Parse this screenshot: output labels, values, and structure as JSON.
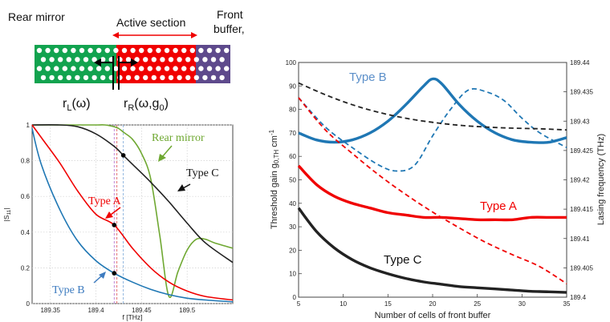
{
  "colors": {
    "green": "#12a34f",
    "red": "#f00000",
    "purple": "#5e4a8c",
    "blue": "#1f77b4",
    "black": "#222222",
    "olive": "#6fa832",
    "darkblue": "#1a5e9c",
    "lightblue": "#5b8fc9"
  },
  "schematic": {
    "rear_mirror_label": "Rear mirror",
    "active_section_label": "Active section",
    "front_buffer_line1": "Front",
    "front_buffer_line2": "buffer,",
    "rl_label": "r",
    "rl_sub": "L",
    "rl_arg": "(ω)",
    "rr_label": "r",
    "rr_sub": "R",
    "rr_arg": "(ω,g",
    "rr_sub2": "0",
    "rr_end": ")"
  },
  "chart_data": [
    {
      "type": "line",
      "xlabel": "f [THz]",
      "ylabel": "|S11|",
      "ylabel_main": "|S",
      "ylabel_sub": "11",
      "ylabel_end": "|",
      "xlim": [
        189.33,
        189.55
      ],
      "ylim": [
        0,
        1
      ],
      "xticks": [
        "189.35",
        "189.4",
        "189.45",
        "189.5"
      ],
      "yticks": [
        "0",
        "0.2",
        "0.4",
        "0.6",
        "0.8",
        "1"
      ],
      "grid": true,
      "annotations": [
        "Rear mirror",
        "Type A",
        "Type C",
        "Type B"
      ],
      "vertical_markers": [
        189.42,
        189.423,
        189.43
      ],
      "series": [
        {
          "name": "Rear mirror",
          "x": [
            189.33,
            189.38,
            189.4,
            189.41,
            189.42,
            189.425,
            189.43,
            189.44,
            189.45,
            189.46,
            189.47,
            189.48,
            189.49,
            189.5,
            189.51,
            189.52,
            189.53,
            189.55
          ],
          "y": [
            1.0,
            1.0,
            1.0,
            1.0,
            0.99,
            0.98,
            0.96,
            0.92,
            0.84,
            0.7,
            0.38,
            0.04,
            0.18,
            0.3,
            0.36,
            0.36,
            0.34,
            0.31
          ]
        },
        {
          "name": "Type C",
          "x": [
            189.33,
            189.36,
            189.38,
            189.4,
            189.42,
            189.43,
            189.44,
            189.46,
            189.48,
            189.5,
            189.52,
            189.55
          ],
          "y": [
            1.0,
            1.0,
            0.99,
            0.95,
            0.88,
            0.83,
            0.78,
            0.68,
            0.57,
            0.45,
            0.34,
            0.23
          ]
        },
        {
          "name": "Type A",
          "x": [
            189.33,
            189.34,
            189.36,
            189.38,
            189.4,
            189.42,
            189.44,
            189.46,
            189.48,
            189.5,
            189.52,
            189.55
          ],
          "y": [
            1.0,
            0.93,
            0.79,
            0.63,
            0.5,
            0.44,
            0.31,
            0.2,
            0.12,
            0.07,
            0.04,
            0.02
          ]
        },
        {
          "name": "Type B",
          "x": [
            189.33,
            189.34,
            189.36,
            189.38,
            189.4,
            189.42,
            189.44,
            189.46,
            189.48,
            189.5,
            189.52,
            189.55
          ],
          "y": [
            0.98,
            0.78,
            0.53,
            0.35,
            0.24,
            0.17,
            0.12,
            0.08,
            0.05,
            0.03,
            0.02,
            0.01
          ]
        }
      ],
      "points": [
        {
          "series": "Type C",
          "x": 189.43,
          "y": 0.83
        },
        {
          "series": "Type A",
          "x": 189.42,
          "y": 0.44
        },
        {
          "series": "Type B",
          "x": 189.42,
          "y": 0.17
        }
      ]
    },
    {
      "type": "line",
      "xlabel": "Number of cells of front buffer",
      "ylabel_left": "Threshold gain g",
      "ylabel_left_sub": "0,TH",
      "ylabel_left_unit": " cm",
      "ylabel_left_sup": "-1",
      "ylabel_right": "Lasing frequency  (THz)",
      "xlim": [
        5,
        35
      ],
      "ylim_left": [
        0,
        100
      ],
      "ylim_right": [
        189.4,
        189.44
      ],
      "xticks": [
        "5",
        "10",
        "15",
        "20",
        "25",
        "30",
        "35"
      ],
      "yticks_left": [
        "0",
        "10",
        "20",
        "30",
        "40",
        "50",
        "60",
        "70",
        "80",
        "90",
        "100"
      ],
      "yticks_right": [
        "189.4",
        "189.405",
        "189.41",
        "189.415",
        "189.42",
        "189.425",
        "189.43",
        "189.435",
        "189.44"
      ],
      "annotations": [
        "Type B",
        "Type A",
        "Type C"
      ],
      "series": [
        {
          "name": "Type B",
          "axis": "left",
          "style": "solid",
          "x": [
            5,
            7,
            9,
            11,
            13,
            15,
            17,
            19,
            20,
            21,
            23,
            25,
            27,
            29,
            31,
            33,
            35
          ],
          "y": [
            70,
            67,
            66,
            67,
            70,
            75,
            82,
            90,
            93,
            91,
            82,
            75,
            70,
            67,
            66,
            66,
            68
          ]
        },
        {
          "name": "Type A",
          "axis": "left",
          "style": "solid",
          "x": [
            5,
            7,
            9,
            11,
            13,
            15,
            17,
            19,
            21,
            23,
            25,
            27,
            29,
            31,
            33,
            35
          ],
          "y": [
            56,
            48,
            43,
            40,
            38,
            36,
            35,
            34,
            34,
            33.5,
            33,
            33,
            33,
            34,
            34,
            34
          ]
        },
        {
          "name": "Type C",
          "axis": "left",
          "style": "solid",
          "x": [
            5,
            7,
            9,
            11,
            13,
            15,
            17,
            19,
            21,
            23,
            25,
            27,
            29,
            31,
            33,
            35
          ],
          "y": [
            38,
            28,
            21,
            16,
            12.5,
            10,
            8,
            6.5,
            5.5,
            4.5,
            4,
            3.5,
            3,
            2.5,
            2.3,
            2
          ]
        },
        {
          "name": "Type B",
          "axis": "right",
          "style": "dashed",
          "x": [
            5,
            8,
            11,
            14,
            16,
            18,
            20,
            22,
            24,
            26,
            28,
            30,
            32,
            35
          ],
          "y": [
            189.434,
            189.429,
            189.4255,
            189.4225,
            189.4215,
            189.4225,
            189.4275,
            189.432,
            189.4353,
            189.435,
            189.4335,
            189.4305,
            189.428,
            189.4255
          ]
        },
        {
          "name": "Type A",
          "axis": "right",
          "style": "dashed",
          "x": [
            5,
            8,
            11,
            14,
            17,
            20,
            23,
            26,
            29,
            32,
            35
          ],
          "y": [
            189.434,
            189.4285,
            189.4245,
            189.4208,
            189.4175,
            189.4145,
            189.4118,
            189.4093,
            189.4072,
            189.4052,
            189.4023
          ]
        },
        {
          "name": "Type C",
          "axis": "right",
          "style": "dashed",
          "x": [
            5,
            8,
            11,
            14,
            17,
            20,
            23,
            26,
            29,
            32,
            35
          ],
          "y": [
            189.4365,
            189.4345,
            189.4328,
            189.4315,
            189.4305,
            189.4298,
            189.4293,
            189.429,
            189.4288,
            189.4287,
            189.4285
          ]
        }
      ]
    }
  ]
}
